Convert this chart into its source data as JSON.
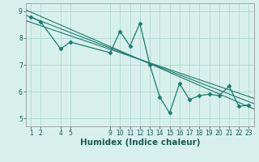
{
  "title": "",
  "xlabel": "Humidex (Indice chaleur)",
  "ylabel": "",
  "bg_color": "#d8f0ec",
  "line_color": "#1a7a6e",
  "grid_color": "#b0d8d0",
  "xticks": [
    1,
    2,
    4,
    5,
    9,
    10,
    11,
    12,
    13,
    14,
    15,
    16,
    17,
    18,
    19,
    20,
    21,
    22,
    23
  ],
  "yticks": [
    5,
    6,
    7,
    8,
    9
  ],
  "xlim": [
    0.5,
    23.5
  ],
  "ylim": [
    4.7,
    9.3
  ],
  "data_x": [
    1,
    2,
    4,
    5,
    9,
    10,
    11,
    12,
    13,
    14,
    15,
    16,
    17,
    18,
    19,
    20,
    21,
    22,
    23
  ],
  "data_y": [
    8.8,
    8.6,
    7.6,
    7.85,
    7.45,
    8.25,
    7.7,
    8.55,
    7.0,
    5.8,
    5.2,
    6.3,
    5.7,
    5.85,
    5.9,
    5.85,
    6.2,
    5.45,
    5.5
  ],
  "trend1_x": [
    0.5,
    23.5
  ],
  "trend1_y": [
    9.05,
    5.35
  ],
  "trend2_x": [
    0.5,
    23.5
  ],
  "trend2_y": [
    8.85,
    5.55
  ],
  "trend3_x": [
    0.5,
    23.5
  ],
  "trend3_y": [
    8.65,
    5.75
  ],
  "font_color": "#1a5a50",
  "tick_fontsize": 5.5,
  "label_fontsize": 7.5
}
